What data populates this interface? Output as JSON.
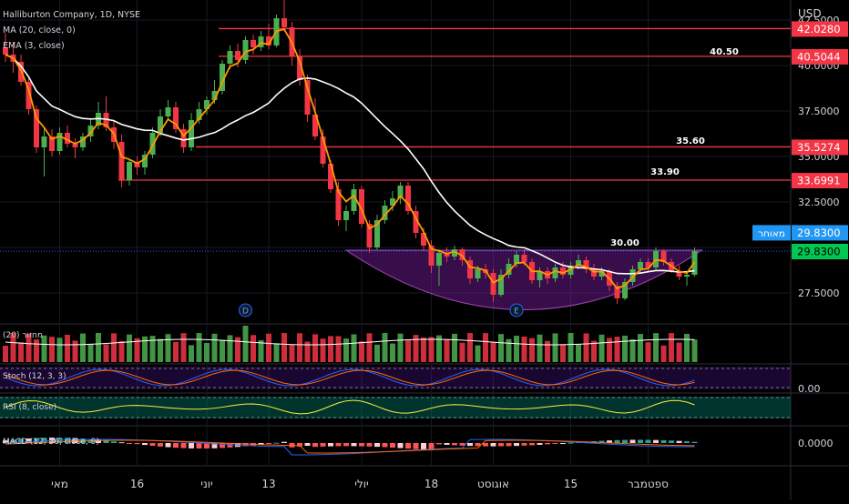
{
  "header": {
    "symbol_line": "Halliburton Company, 1D, NYSE",
    "ma_line": "MA (20, close, 0)",
    "ema_line": "EMA (3, close)",
    "currency": "USD"
  },
  "colors": {
    "background": "#000000",
    "bull": "#4caf50",
    "bear": "#f23645",
    "ma": "#ffffff",
    "ema": "#ff9800",
    "hline": "#f23645",
    "bowl": "#7b1fa2",
    "price_tag": "#2196f3",
    "last_tag": "#00c853"
  },
  "chart_data": [
    {
      "type": "candlestick",
      "title": "Halliburton Company, 1D, NYSE",
      "ylim": [
        26.0,
        43.2
      ],
      "y_ticks": [
        "42.5000",
        "40.0000",
        "37.5000",
        "35.0000",
        "32.5000",
        "30.0000",
        "27.5000"
      ],
      "x_ticks": [
        "מאי",
        "16",
        "יוני",
        "13",
        "יולי",
        "18",
        "אוגוסט",
        "15",
        "ספטמבר"
      ],
      "x_tick_index": [
        7,
        17,
        26,
        34,
        46,
        55,
        63,
        73,
        83
      ],
      "candles": [
        [
          41.0,
          41.8,
          40.2,
          40.6
        ],
        [
          40.6,
          41.3,
          39.6,
          40.2
        ],
        [
          40.2,
          40.6,
          38.9,
          39.1
        ],
        [
          39.1,
          39.3,
          37.3,
          37.6
        ],
        [
          37.6,
          37.8,
          35.2,
          35.5
        ],
        [
          35.5,
          36.6,
          33.9,
          36.1
        ],
        [
          36.1,
          36.5,
          35.0,
          35.3
        ],
        [
          35.3,
          36.6,
          35.1,
          36.3
        ],
        [
          36.3,
          36.7,
          35.5,
          35.7
        ],
        [
          35.7,
          36.0,
          34.9,
          35.5
        ],
        [
          35.5,
          36.3,
          35.3,
          36.1
        ],
        [
          36.1,
          37.1,
          35.8,
          36.7
        ],
        [
          36.7,
          38.0,
          36.5,
          37.4
        ],
        [
          37.4,
          38.3,
          36.4,
          36.6
        ],
        [
          36.6,
          37.0,
          35.4,
          35.8
        ],
        [
          35.8,
          36.2,
          33.3,
          33.7
        ],
        [
          33.7,
          34.8,
          33.4,
          34.7
        ],
        [
          34.7,
          35.0,
          34.0,
          34.4
        ],
        [
          34.4,
          35.3,
          34.0,
          35.1
        ],
        [
          35.1,
          36.6,
          34.9,
          36.3
        ],
        [
          36.3,
          37.6,
          36.1,
          37.2
        ],
        [
          37.2,
          38.1,
          37.0,
          37.7
        ],
        [
          37.7,
          38.0,
          36.3,
          36.5
        ],
        [
          36.5,
          36.8,
          35.2,
          35.5
        ],
        [
          35.5,
          37.4,
          35.3,
          37.0
        ],
        [
          37.0,
          38.0,
          36.8,
          37.6
        ],
        [
          37.6,
          38.3,
          37.3,
          38.1
        ],
        [
          38.1,
          39.2,
          37.9,
          38.6
        ],
        [
          38.6,
          40.3,
          38.4,
          40.1
        ],
        [
          40.1,
          41.1,
          39.8,
          40.8
        ],
        [
          40.8,
          41.2,
          39.9,
          40.3
        ],
        [
          40.3,
          41.6,
          40.1,
          41.4
        ],
        [
          41.4,
          41.7,
          40.6,
          41.0
        ],
        [
          41.0,
          41.9,
          40.8,
          41.6
        ],
        [
          41.6,
          42.3,
          40.9,
          41.1
        ],
        [
          41.1,
          42.8,
          41.0,
          42.6
        ],
        [
          42.6,
          43.6,
          41.9,
          42.1
        ],
        [
          42.1,
          42.4,
          40.0,
          40.5
        ],
        [
          40.5,
          40.9,
          38.9,
          39.2
        ],
        [
          39.2,
          39.5,
          36.9,
          37.3
        ],
        [
          37.3,
          38.2,
          35.9,
          36.1
        ],
        [
          36.1,
          36.5,
          34.4,
          34.6
        ],
        [
          34.6,
          34.8,
          33.0,
          33.2
        ],
        [
          33.2,
          33.6,
          31.2,
          31.5
        ],
        [
          31.5,
          32.3,
          30.9,
          32.0
        ],
        [
          32.0,
          33.5,
          31.8,
          33.2
        ],
        [
          33.2,
          33.4,
          31.1,
          31.3
        ],
        [
          31.3,
          31.5,
          29.7,
          30.0
        ],
        [
          30.0,
          31.8,
          29.9,
          31.5
        ],
        [
          31.5,
          32.6,
          31.3,
          32.3
        ],
        [
          32.3,
          33.1,
          32.0,
          32.7
        ],
        [
          32.7,
          33.6,
          32.4,
          33.4
        ],
        [
          33.4,
          33.6,
          31.8,
          32.0
        ],
        [
          32.0,
          32.3,
          30.5,
          30.8
        ],
        [
          30.8,
          31.1,
          29.8,
          30.1
        ],
        [
          30.1,
          30.4,
          28.6,
          29.0
        ],
        [
          29.0,
          29.9,
          27.9,
          29.7
        ],
        [
          29.7,
          30.0,
          29.2,
          29.5
        ],
        [
          29.5,
          30.1,
          29.3,
          29.9
        ],
        [
          29.9,
          30.0,
          29.0,
          29.3
        ],
        [
          29.3,
          29.5,
          28.0,
          28.3
        ],
        [
          28.3,
          29.0,
          28.1,
          28.8
        ],
        [
          28.8,
          29.1,
          28.3,
          28.6
        ],
        [
          28.6,
          28.8,
          27.0,
          27.4
        ],
        [
          27.4,
          28.8,
          27.3,
          28.5
        ],
        [
          28.5,
          29.4,
          28.3,
          29.1
        ],
        [
          29.1,
          29.8,
          28.9,
          29.6
        ],
        [
          29.6,
          29.9,
          29.0,
          29.2
        ],
        [
          29.2,
          29.4,
          28.0,
          28.2
        ],
        [
          28.2,
          28.9,
          27.8,
          28.7
        ],
        [
          28.7,
          28.9,
          28.0,
          28.3
        ],
        [
          28.3,
          29.1,
          28.1,
          28.9
        ],
        [
          28.9,
          29.2,
          28.3,
          28.5
        ],
        [
          28.5,
          29.2,
          28.3,
          29.0
        ],
        [
          29.0,
          29.6,
          28.8,
          29.3
        ],
        [
          29.3,
          29.5,
          28.6,
          28.8
        ],
        [
          28.8,
          29.1,
          28.2,
          28.4
        ],
        [
          28.4,
          28.9,
          28.2,
          28.7
        ],
        [
          28.7,
          28.8,
          27.6,
          27.9
        ],
        [
          27.9,
          28.1,
          26.9,
          27.2
        ],
        [
          27.2,
          28.3,
          27.1,
          28.1
        ],
        [
          28.1,
          29.0,
          27.9,
          28.8
        ],
        [
          28.8,
          29.4,
          28.6,
          29.2
        ],
        [
          29.2,
          29.4,
          28.7,
          28.9
        ],
        [
          28.9,
          30.0,
          28.7,
          29.8
        ],
        [
          29.8,
          29.9,
          29.0,
          29.2
        ],
        [
          29.2,
          29.4,
          28.6,
          28.7
        ],
        [
          28.7,
          29.0,
          28.2,
          28.4
        ],
        [
          28.4,
          28.7,
          27.9,
          28.5
        ],
        [
          28.5,
          30.0,
          28.4,
          29.8
        ]
      ],
      "horizontal_levels": [
        42.028,
        40.5044,
        35.5274,
        33.6991
      ],
      "level_labels": [
        "40.50",
        "35.60",
        "33.90",
        "30.00"
      ],
      "price_tags": [
        "42.0280",
        "40.5044",
        "35.5274",
        "33.6991",
        "29.8300",
        "29.8300"
      ],
      "delayed_label": "מאוחר",
      "markers": [
        "D",
        "E"
      ],
      "ma_period": 20,
      "ema_period": 3,
      "grid": true
    },
    {
      "type": "bar",
      "title": "מחזור (20)",
      "note": "volume pane"
    },
    {
      "type": "line",
      "title": "Stoch (12, 3, 3)",
      "y_ticks": [
        "0.00"
      ]
    },
    {
      "type": "line",
      "title": "RSI (8, close)"
    },
    {
      "type": "line",
      "title": "MACD (12, 26, close, 9)",
      "y_ticks": [
        "0.0000"
      ]
    }
  ]
}
